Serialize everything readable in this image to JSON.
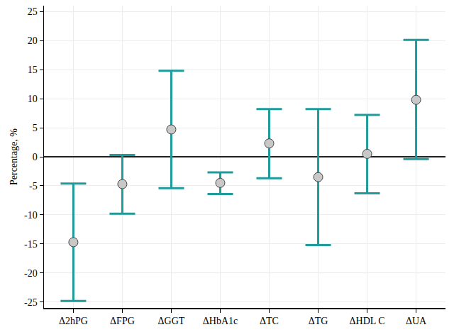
{
  "chart_data": {
    "type": "scatter",
    "y_label": "Percentage, %",
    "categories": [
      "Δ2hPG",
      "ΔFPG",
      "ΔGGT",
      "ΔHbA1c",
      "ΔTC",
      "ΔTG",
      "ΔHDL C",
      "ΔUA"
    ],
    "values": [
      -14.7,
      -4.7,
      4.7,
      -4.5,
      2.3,
      -3.5,
      0.5,
      9.8
    ],
    "error_plus": [
      10.1,
      5.0,
      10.1,
      1.8,
      5.9,
      11.7,
      6.7,
      10.3
    ],
    "error_minus": [
      10.1,
      5.1,
      10.1,
      1.9,
      6.0,
      11.7,
      6.8,
      10.2
    ],
    "color": "#1e9b9b",
    "marker": "circle",
    "ylim": [
      -26,
      26
    ],
    "yticks": [
      -25,
      -20,
      -15,
      -10,
      -5,
      0,
      5,
      10,
      15,
      20,
      25
    ],
    "grid": true
  }
}
